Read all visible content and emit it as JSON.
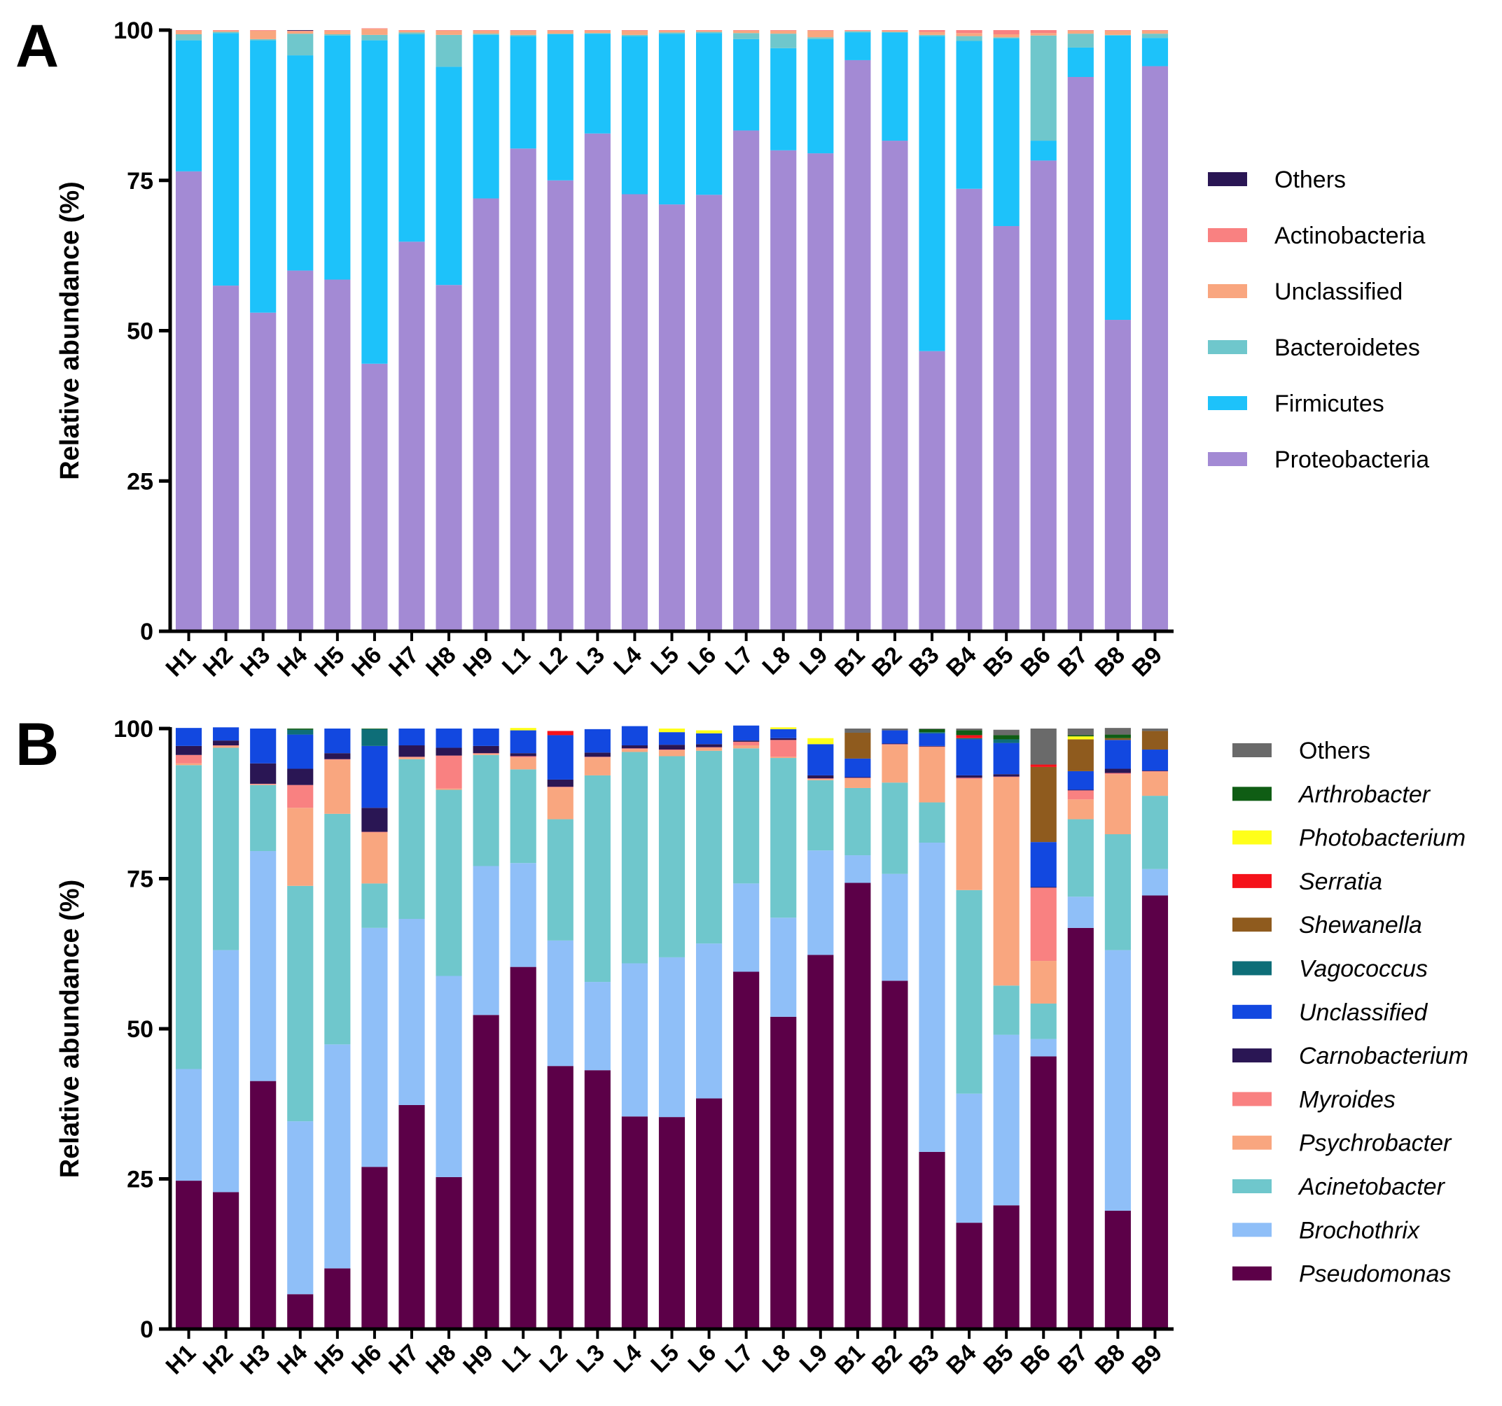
{
  "chart_data": [
    {
      "panel_label": "A",
      "type": "bar",
      "stacked": true,
      "ylabel": "Relative abundance (%)",
      "xlabel": "",
      "ylim": [
        0,
        100
      ],
      "yticks": [
        "0",
        "25",
        "50",
        "75",
        "100"
      ],
      "categories": [
        "H1",
        "H2",
        "H3",
        "H4",
        "H5",
        "H6",
        "H7",
        "H8",
        "H9",
        "L1",
        "L2",
        "L3",
        "L4",
        "L5",
        "L6",
        "L7",
        "L8",
        "L9",
        "B1",
        "B2",
        "B3",
        "B4",
        "B5",
        "B6",
        "B7",
        "B8",
        "B9"
      ],
      "legend_position": "right",
      "series": [
        {
          "name": "Proteobacteria",
          "color": "#A38AD4",
          "italic": false,
          "values": [
            76.5,
            57.5,
            53,
            60,
            58.5,
            44.5,
            64.8,
            57.6,
            72,
            80.3,
            75,
            82.8,
            72.7,
            71,
            72.6,
            83.3,
            80,
            79.5,
            95,
            81.6,
            46.6,
            73.6,
            67.4,
            78.3,
            92.2,
            51.8,
            94
          ]
        },
        {
          "name": "Firmicutes",
          "color": "#1DC2FA",
          "italic": false,
          "values": [
            21.8,
            42,
            45.3,
            35.8,
            40.6,
            53.8,
            34.5,
            36.3,
            27.2,
            18.7,
            24.3,
            16.6,
            26.3,
            28.4,
            26.9,
            15.2,
            17,
            19,
            4.6,
            18,
            52.4,
            24.6,
            31.2,
            3.3,
            4.9,
            47.3,
            4.7
          ]
        },
        {
          "name": "Bacteroidetes",
          "color": "#6FC7CC",
          "italic": false,
          "values": [
            1.0,
            0.2,
            0.2,
            3.6,
            0.2,
            0.9,
            0.3,
            5.3,
            0.2,
            0.2,
            0.1,
            0.1,
            0.2,
            0.2,
            0.2,
            1.0,
            2.4,
            0.3,
            0.2,
            0.1,
            0.2,
            0.8,
            0.2,
            17.5,
            2.3,
            0.1,
            0.7
          ]
        },
        {
          "name": "Unclassified",
          "color": "#F9A67F",
          "italic": false,
          "values": [
            0.6,
            0.2,
            1.4,
            0.4,
            0.6,
            1.0,
            0.3,
            0.7,
            0.5,
            0.7,
            0.5,
            0.4,
            0.7,
            0.3,
            0.2,
            0.4,
            0.5,
            1.1,
            0.1,
            0.2,
            0.5,
            0.5,
            0.5,
            0.4,
            0.5,
            0.7,
            0.5
          ]
        },
        {
          "name": "Actinobacteria",
          "color": "#F98181",
          "italic": false,
          "values": [
            0.1,
            0.1,
            0.1,
            0.1,
            0.1,
            0.1,
            0.1,
            0.1,
            0.1,
            0.1,
            0.1,
            0.1,
            0.1,
            0.1,
            0.1,
            0.1,
            0.1,
            0.1,
            0.1,
            0.1,
            0.3,
            0.5,
            0.7,
            0.5,
            0.1,
            0.1,
            0.1
          ]
        },
        {
          "name": "Others",
          "color": "#2A1654",
          "italic": false,
          "values": [
            0,
            0,
            0,
            0.1,
            0,
            0,
            0,
            0,
            0,
            0,
            0,
            0,
            0,
            0,
            0,
            0,
            0,
            0,
            0,
            0,
            0,
            0,
            0,
            0,
            0,
            0,
            0
          ]
        }
      ]
    },
    {
      "panel_label": "B",
      "type": "bar",
      "stacked": true,
      "ylabel": "Relative abundance (%)",
      "xlabel": "",
      "ylim": [
        0,
        100
      ],
      "yticks": [
        "0",
        "25",
        "50",
        "75",
        "100"
      ],
      "categories": [
        "H1",
        "H2",
        "H3",
        "H4",
        "H5",
        "H6",
        "H7",
        "H8",
        "H9",
        "L1",
        "L2",
        "L3",
        "L4",
        "L5",
        "L6",
        "L7",
        "L8",
        "L9",
        "B1",
        "B2",
        "B3",
        "B4",
        "B5",
        "B6",
        "B7",
        "B8",
        "B9"
      ],
      "legend_position": "right",
      "series": [
        {
          "name": "Pseudomonas",
          "color": "#5C0048",
          "italic": true,
          "values": [
            24.7,
            22.8,
            41.3,
            5.8,
            10.1,
            27,
            37.3,
            25.3,
            52.3,
            60.3,
            43.8,
            43.1,
            35.4,
            35.3,
            38.4,
            59.5,
            52,
            62.3,
            74.3,
            58,
            29.5,
            17.7,
            20.6,
            45.4,
            66.8,
            19.7,
            72.2
          ]
        },
        {
          "name": "Brochothrix",
          "color": "#8FBFF8",
          "italic": true,
          "values": [
            18.6,
            40.3,
            38.3,
            28.8,
            37.3,
            39.8,
            31,
            33.5,
            24.8,
            17.3,
            20.9,
            14.7,
            25.5,
            26.6,
            25.8,
            14.7,
            16.5,
            17.4,
            4.6,
            17.8,
            51.5,
            21.5,
            28.4,
            2.9,
            5.2,
            43.4,
            4.4
          ]
        },
        {
          "name": "Acinetobacter",
          "color": "#6FC7CC",
          "italic": true,
          "values": [
            50.6,
            33.7,
            11,
            39.2,
            38.4,
            7.4,
            26.6,
            31,
            18.5,
            15.6,
            20.2,
            34.4,
            35.2,
            33.5,
            32.1,
            22.5,
            26.6,
            11.7,
            11.2,
            15.2,
            6.7,
            33.9,
            8.2,
            5.9,
            12.9,
            19.3,
            12.2
          ]
        },
        {
          "name": "Psychrobacter",
          "color": "#F9A67F",
          "italic": true,
          "values": [
            0.3,
            0.3,
            0.1,
            13,
            9,
            8.5,
            0.3,
            0.2,
            0.2,
            2,
            5.3,
            3,
            0.5,
            1,
            0.5,
            0.5,
            0.2,
            0.2,
            1.6,
            6.3,
            9.2,
            18.5,
            34.7,
            7.1,
            3.3,
            10,
            4
          ]
        },
        {
          "name": "Myroides",
          "color": "#F98181",
          "italic": true,
          "values": [
            1.4,
            0.1,
            0.1,
            3.8,
            0.1,
            0.1,
            0.1,
            5.5,
            0.1,
            0.2,
            0.1,
            0.1,
            0.1,
            0.1,
            0.1,
            0.6,
            2.8,
            0.1,
            0.1,
            0.1,
            0.1,
            0.2,
            0.1,
            12.2,
            1.5,
            0.2,
            0.1
          ]
        },
        {
          "name": "Carnobacterium",
          "color": "#2A1654",
          "italic": true,
          "values": [
            1.5,
            0.8,
            3.4,
            2.7,
            1,
            4,
            1.9,
            1.3,
            1.2,
            0.5,
            1.2,
            0.7,
            0.5,
            0.8,
            0.5,
            0.2,
            0.3,
            0.5,
            0.1,
            0.1,
            0.1,
            0.4,
            0.4,
            0.1,
            0.1,
            0.7,
            0.1
          ]
        },
        {
          "name": "Unclassified",
          "color": "#1248E0",
          "italic": true,
          "values": [
            3,
            2.2,
            5.8,
            5.7,
            4.1,
            10.3,
            2.8,
            3.2,
            2.9,
            3.8,
            7.4,
            3.9,
            3.2,
            2.1,
            1.8,
            2.5,
            1.5,
            5.2,
            3.1,
            2.2,
            2.1,
            6,
            5.2,
            7.5,
            3.1,
            4.8,
            3.5
          ]
        },
        {
          "name": "Vagococcus",
          "color": "#0E6E78",
          "italic": true,
          "values": [
            0,
            0,
            0,
            0.8,
            0,
            2.8,
            0,
            0,
            0,
            0,
            0,
            0,
            0,
            0,
            0,
            0,
            0,
            0,
            0,
            0,
            0.2,
            0.2,
            0.6,
            0,
            0,
            0,
            0
          ]
        },
        {
          "name": "Shewanella",
          "color": "#8F5B1E",
          "italic": true,
          "values": [
            0,
            0,
            0,
            0,
            0,
            0,
            0,
            0,
            0,
            0,
            0,
            0,
            0,
            0,
            0,
            0,
            0,
            0,
            4.3,
            0,
            0,
            0,
            0,
            12.5,
            5.3,
            0.3,
            3.1
          ]
        },
        {
          "name": "Serratia",
          "color": "#F5121A",
          "italic": true,
          "values": [
            0,
            0,
            0,
            0,
            0,
            0,
            0,
            0,
            0,
            0,
            0.7,
            0,
            0,
            0,
            0,
            0,
            0,
            0,
            0,
            0,
            0,
            0.5,
            0,
            0.4,
            0,
            0,
            0
          ]
        },
        {
          "name": "Photobacterium",
          "color": "#FFFF1A",
          "italic": true,
          "values": [
            0,
            0,
            0,
            0,
            0,
            0,
            0,
            0,
            0,
            0.4,
            0,
            0,
            0,
            0.6,
            0.5,
            0,
            0.3,
            1,
            0,
            0,
            0,
            0,
            0,
            0,
            0.5,
            0,
            0
          ]
        },
        {
          "name": "Arthrobacter",
          "color": "#0F5D14",
          "italic": true,
          "values": [
            0,
            0,
            0,
            0.2,
            0,
            0.1,
            0,
            0,
            0,
            0,
            0,
            0,
            0,
            0,
            0,
            0,
            0,
            0,
            0,
            0,
            0.5,
            0.8,
            0.7,
            0,
            0.2,
            0.6,
            0
          ]
        },
        {
          "name": "Others",
          "color": "#6A6A6A",
          "italic": false,
          "values": [
            0,
            0,
            0,
            0,
            0,
            0,
            0,
            0,
            0,
            0,
            0,
            0,
            0,
            0,
            0,
            0,
            0,
            0,
            0.7,
            0.3,
            0.1,
            0.3,
            0.9,
            6,
            1.1,
            1.1,
            0.4
          ]
        }
      ]
    }
  ]
}
